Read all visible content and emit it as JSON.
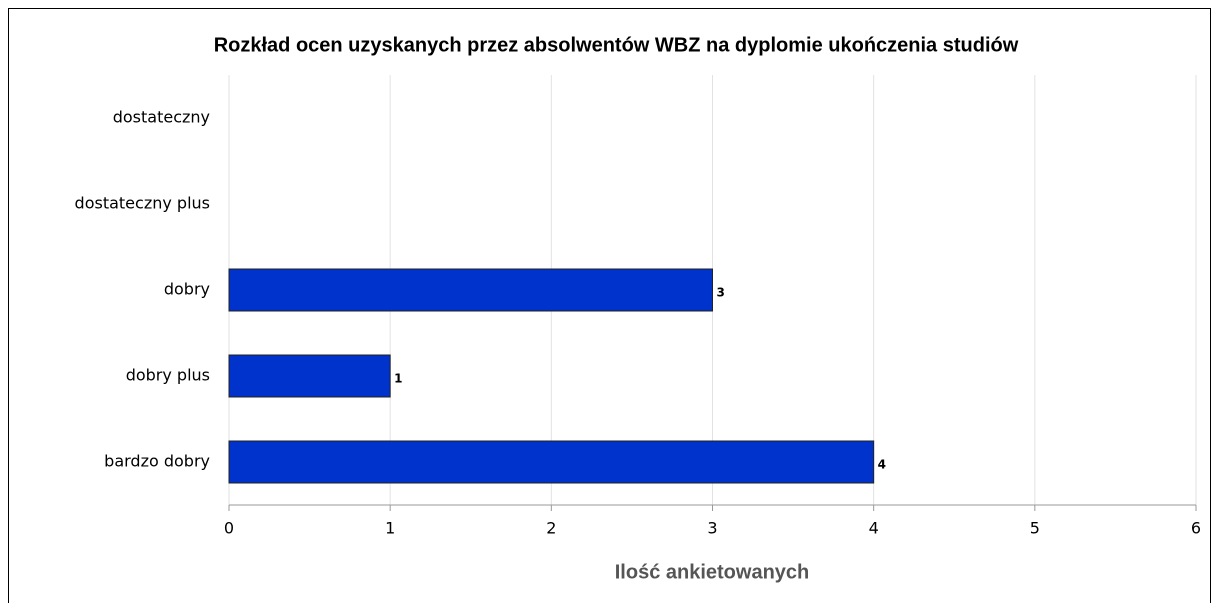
{
  "chart_data": {
    "type": "bar",
    "orientation": "horizontal",
    "title": "Rozkład ocen uzyskanych przez absolwentów WBZ na dyplomie ukończenia studiów",
    "x_label": "Ilość ankietowanych",
    "categories": [
      "dostateczny",
      "dostateczny plus",
      "dobry",
      "dobry plus",
      "bardzo dobry"
    ],
    "values": [
      null,
      null,
      3,
      1,
      4
    ],
    "color": "#0033cc",
    "xlim": [
      0,
      6
    ],
    "xticks": [
      0,
      1,
      2,
      3,
      4,
      5,
      6
    ],
    "grid": true
  }
}
